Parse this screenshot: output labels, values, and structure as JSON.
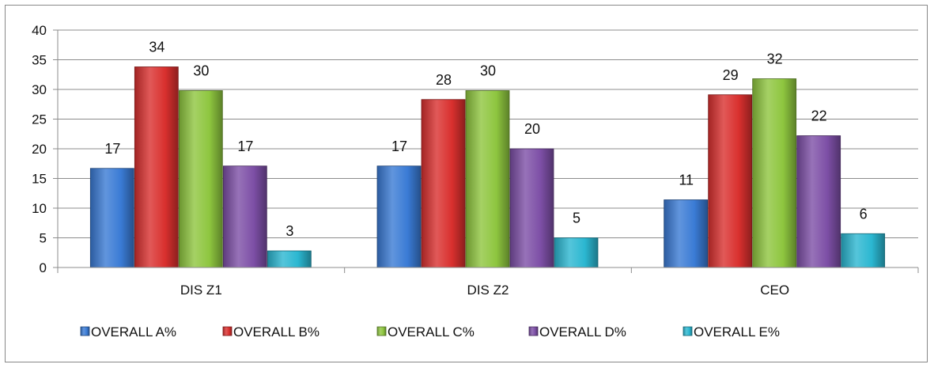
{
  "chart_data": {
    "type": "bar",
    "categories": [
      "DIS Z1",
      "DIS Z2",
      "CEO"
    ],
    "series": [
      {
        "name": "OVERALL A%",
        "values": [
          16.7,
          17.1,
          11.4
        ],
        "labels": [
          "17",
          "17",
          "11"
        ],
        "color": "#3a7bd5"
      },
      {
        "name": "OVERALL B%",
        "values": [
          33.8,
          28.3,
          29.1
        ],
        "labels": [
          "34",
          "28",
          "29"
        ],
        "color": "#d9302e"
      },
      {
        "name": "OVERALL C%",
        "values": [
          29.8,
          29.8,
          31.8
        ],
        "labels": [
          "30",
          "30",
          "32"
        ],
        "color": "#8ec63f"
      },
      {
        "name": "OVERALL D%",
        "values": [
          17.1,
          20.0,
          22.2
        ],
        "labels": [
          "17",
          "20",
          "22"
        ],
        "color": "#7d4fa6"
      },
      {
        "name": "OVERALL E%",
        "values": [
          2.8,
          5.0,
          5.7
        ],
        "labels": [
          "3",
          "5",
          "6"
        ],
        "color": "#2bb7d1"
      }
    ],
    "yticks": [
      "0",
      "5",
      "10",
      "15",
      "20",
      "25",
      "30",
      "35",
      "40"
    ],
    "ylim": [
      0,
      40
    ],
    "grid": true,
    "legend": "bottom"
  }
}
